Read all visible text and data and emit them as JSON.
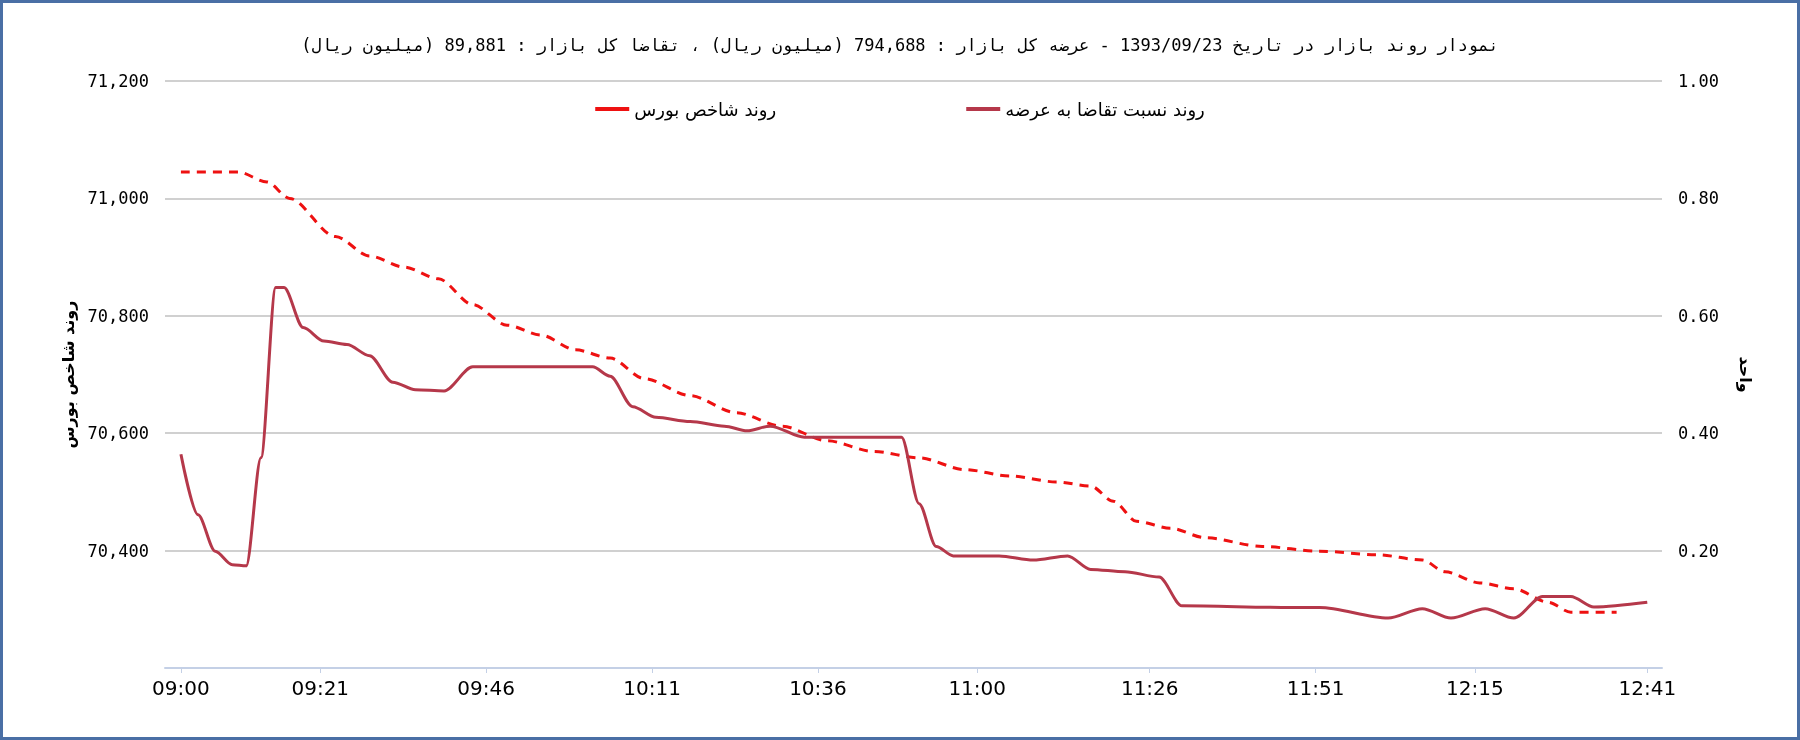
{
  "chart_data": {
    "type": "line",
    "title": "نمودار روند بازار در تاریخ 1393/09/23 - عرضه کل بازار : 794,688 (میلیون ریال) ، تقاضا کل بازار : 89,881 (میلیون ریال)",
    "ylabel": "روند شاخص بورس",
    "y2label": "واحد",
    "xlim": [
      8.96,
      12.72
    ],
    "xticks": [
      {
        "value": 9,
        "label": "09:00"
      },
      {
        "value": 9.35,
        "label": "09:21"
      },
      {
        "value": 9.7667,
        "label": "09:46"
      },
      {
        "value": 10.1833,
        "label": "10:11"
      },
      {
        "value": 10.6,
        "label": "10:36"
      },
      {
        "value": 11,
        "label": "11:00"
      },
      {
        "value": 11.4333,
        "label": "11:26"
      },
      {
        "value": 11.85,
        "label": "11:51"
      },
      {
        "value": 12.25,
        "label": "12:15"
      },
      {
        "value": 12.6833,
        "label": "12:41"
      }
    ],
    "ylim": [
      70200,
      71200
    ],
    "yticks": [
      {
        "value": 70400,
        "label": "70,400"
      },
      {
        "value": 70600,
        "label": "70,600"
      },
      {
        "value": 70800,
        "label": "70,800"
      },
      {
        "value": 71000,
        "label": "71,000"
      },
      {
        "value": 71200,
        "label": "71,200"
      }
    ],
    "y2lim": [
      0,
      1
    ],
    "y2ticks": [
      {
        "value": 0.2,
        "label": "0.20"
      },
      {
        "value": 0.4,
        "label": "0.40"
      },
      {
        "value": 0.6,
        "label": "0.60"
      },
      {
        "value": 0.8,
        "label": "0.80"
      },
      {
        "value": 1,
        "label": "1.00"
      }
    ],
    "grid": "y",
    "legend": "top",
    "marker": "none",
    "series": [
      {
        "name": "روند شاخص بورس",
        "color": "#ee1111",
        "line_style": "dashed",
        "x": [
          9.0,
          9.144,
          9.216,
          9.273,
          9.388,
          9.474,
          9.56,
          9.647,
          9.733,
          9.819,
          9.905,
          9.991,
          10.078,
          10.164,
          10.279,
          10.394,
          10.509,
          10.624,
          10.739,
          10.854,
          10.969,
          11.083,
          11.198,
          11.285,
          11.342,
          11.4,
          11.486,
          11.572,
          11.716,
          11.86,
          12.003,
          12.118,
          12.175,
          12.262,
          12.348,
          12.434,
          12.491,
          12.606
        ],
        "values": [
          71045,
          71045,
          71028,
          71000,
          70935,
          70902,
          70883,
          70863,
          70819,
          70784,
          70767,
          70742,
          70728,
          70693,
          70664,
          70635,
          70612,
          70587,
          70569,
          70558,
          70538,
          70527,
          70517,
          70510,
          70484,
          70450,
          70438,
          70422,
          70407,
          70399,
          70393,
          70384,
          70364,
          70345,
          70335,
          70312,
          70295,
          70295
        ]
      },
      {
        "name": "روند نسبت تقاضا به عرضه",
        "color": "#b5384a",
        "line_style": "solid",
        "axis": "y2",
        "x": [
          9.0,
          9.043,
          9.086,
          9.129,
          9.164,
          9.201,
          9.238,
          9.259,
          9.307,
          9.359,
          9.417,
          9.474,
          9.532,
          9.589,
          9.661,
          9.733,
          9.934,
          10.034,
          10.078,
          10.135,
          10.193,
          10.279,
          10.365,
          10.422,
          10.48,
          10.566,
          10.81,
          10.854,
          10.897,
          10.94,
          11.055,
          11.141,
          11.227,
          11.285,
          11.371,
          11.457,
          11.514,
          11.787,
          11.86,
          12.032,
          12.118,
          12.19,
          12.276,
          12.348,
          12.42,
          12.491,
          12.549,
          12.683
        ],
        "values": [
          0.364,
          0.261,
          0.199,
          0.176,
          0.174,
          0.358,
          0.648,
          0.648,
          0.58,
          0.557,
          0.551,
          0.532,
          0.487,
          0.474,
          0.472,
          0.513,
          0.513,
          0.513,
          0.497,
          0.445,
          0.427,
          0.42,
          0.412,
          0.404,
          0.412,
          0.393,
          0.393,
          0.28,
          0.207,
          0.191,
          0.191,
          0.184,
          0.191,
          0.168,
          0.164,
          0.155,
          0.106,
          0.103,
          0.103,
          0.085,
          0.101,
          0.085,
          0.101,
          0.085,
          0.122,
          0.122,
          0.104,
          0.112
        ]
      }
    ]
  }
}
